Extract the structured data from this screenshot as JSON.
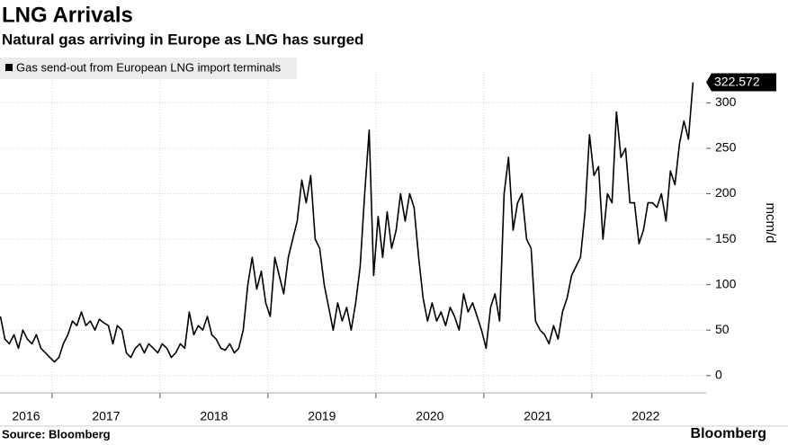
{
  "chart_data": {
    "type": "line",
    "title": "LNG Arrivals",
    "subtitle": "Natural gas arriving in Europe as LNG has surged",
    "y_label": "mcm/d",
    "source": "Source: Bloomberg",
    "logo": "Bloomberg",
    "x": [
      2016.521,
      2016.563,
      2016.604,
      2016.646,
      2016.688,
      2016.729,
      2016.771,
      2016.813,
      2016.854,
      2016.896,
      2016.938,
      2016.979,
      2017.021,
      2017.063,
      2017.104,
      2017.146,
      2017.188,
      2017.229,
      2017.271,
      2017.313,
      2017.354,
      2017.396,
      2017.438,
      2017.479,
      2017.521,
      2017.563,
      2017.604,
      2017.646,
      2017.688,
      2017.729,
      2017.771,
      2017.813,
      2017.854,
      2017.896,
      2017.938,
      2017.979,
      2018.021,
      2018.063,
      2018.104,
      2018.146,
      2018.188,
      2018.229,
      2018.271,
      2018.313,
      2018.354,
      2018.396,
      2018.438,
      2018.479,
      2018.521,
      2018.563,
      2018.604,
      2018.646,
      2018.688,
      2018.729,
      2018.771,
      2018.813,
      2018.854,
      2018.896,
      2018.938,
      2018.979,
      2019.021,
      2019.063,
      2019.104,
      2019.146,
      2019.188,
      2019.229,
      2019.271,
      2019.313,
      2019.354,
      2019.396,
      2019.438,
      2019.479,
      2019.521,
      2019.563,
      2019.604,
      2019.646,
      2019.688,
      2019.729,
      2019.771,
      2019.813,
      2019.854,
      2019.896,
      2019.938,
      2019.979,
      2020.021,
      2020.063,
      2020.104,
      2020.146,
      2020.188,
      2020.229,
      2020.271,
      2020.313,
      2020.354,
      2020.396,
      2020.438,
      2020.479,
      2020.521,
      2020.563,
      2020.604,
      2020.646,
      2020.688,
      2020.729,
      2020.771,
      2020.813,
      2020.854,
      2020.896,
      2020.938,
      2020.979,
      2021.021,
      2021.063,
      2021.104,
      2021.146,
      2021.188,
      2021.229,
      2021.271,
      2021.313,
      2021.354,
      2021.396,
      2021.438,
      2021.479,
      2021.521,
      2021.563,
      2021.604,
      2021.646,
      2021.688,
      2021.729,
      2021.771,
      2021.813,
      2021.854,
      2021.896,
      2021.938,
      2021.979,
      2022.021,
      2022.063,
      2022.104,
      2022.146,
      2022.188,
      2022.229,
      2022.271,
      2022.313,
      2022.354,
      2022.396,
      2022.438,
      2022.479,
      2022.521,
      2022.563,
      2022.604,
      2022.646,
      2022.688,
      2022.729,
      2022.771,
      2022.813,
      2022.854,
      2022.896,
      2022.938
    ],
    "series": [
      {
        "name": "Gas send-out from European LNG import terminals",
        "color": "#000000",
        "values": [
          65,
          40,
          35,
          45,
          30,
          50,
          40,
          35,
          45,
          30,
          25,
          20,
          15,
          20,
          35,
          45,
          60,
          55,
          70,
          55,
          60,
          50,
          62,
          58,
          55,
          35,
          55,
          50,
          25,
          20,
          30,
          35,
          25,
          35,
          30,
          25,
          35,
          30,
          20,
          25,
          35,
          30,
          70,
          45,
          55,
          50,
          65,
          45,
          40,
          30,
          28,
          35,
          25,
          30,
          50,
          100,
          130,
          95,
          115,
          80,
          65,
          130,
          110,
          90,
          130,
          150,
          170,
          215,
          190,
          220,
          150,
          140,
          100,
          75,
          50,
          80,
          60,
          75,
          50,
          80,
          120,
          200,
          270,
          110,
          175,
          130,
          180,
          140,
          160,
          200,
          170,
          200,
          185,
          130,
          85,
          60,
          80,
          60,
          70,
          55,
          75,
          65,
          50,
          90,
          70,
          80,
          65,
          50,
          30,
          75,
          90,
          60,
          200,
          240,
          160,
          190,
          200,
          150,
          140,
          60,
          50,
          45,
          35,
          55,
          40,
          70,
          85,
          110,
          120,
          130,
          180,
          265,
          220,
          230,
          150,
          200,
          190,
          290,
          240,
          250,
          190,
          190,
          145,
          160,
          190,
          190,
          185,
          200,
          170,
          225,
          210,
          255,
          280,
          260,
          322.572
        ]
      }
    ],
    "xlim": [
      2016.517,
      2023.06
    ],
    "xticks": [
      2016,
      2017,
      2018,
      2019,
      2020,
      2021,
      2022
    ],
    "ylim": [
      -19,
      334
    ],
    "yticks": [
      0,
      50,
      100,
      150,
      200,
      250,
      300
    ],
    "grid": true,
    "legend": "upper left"
  }
}
